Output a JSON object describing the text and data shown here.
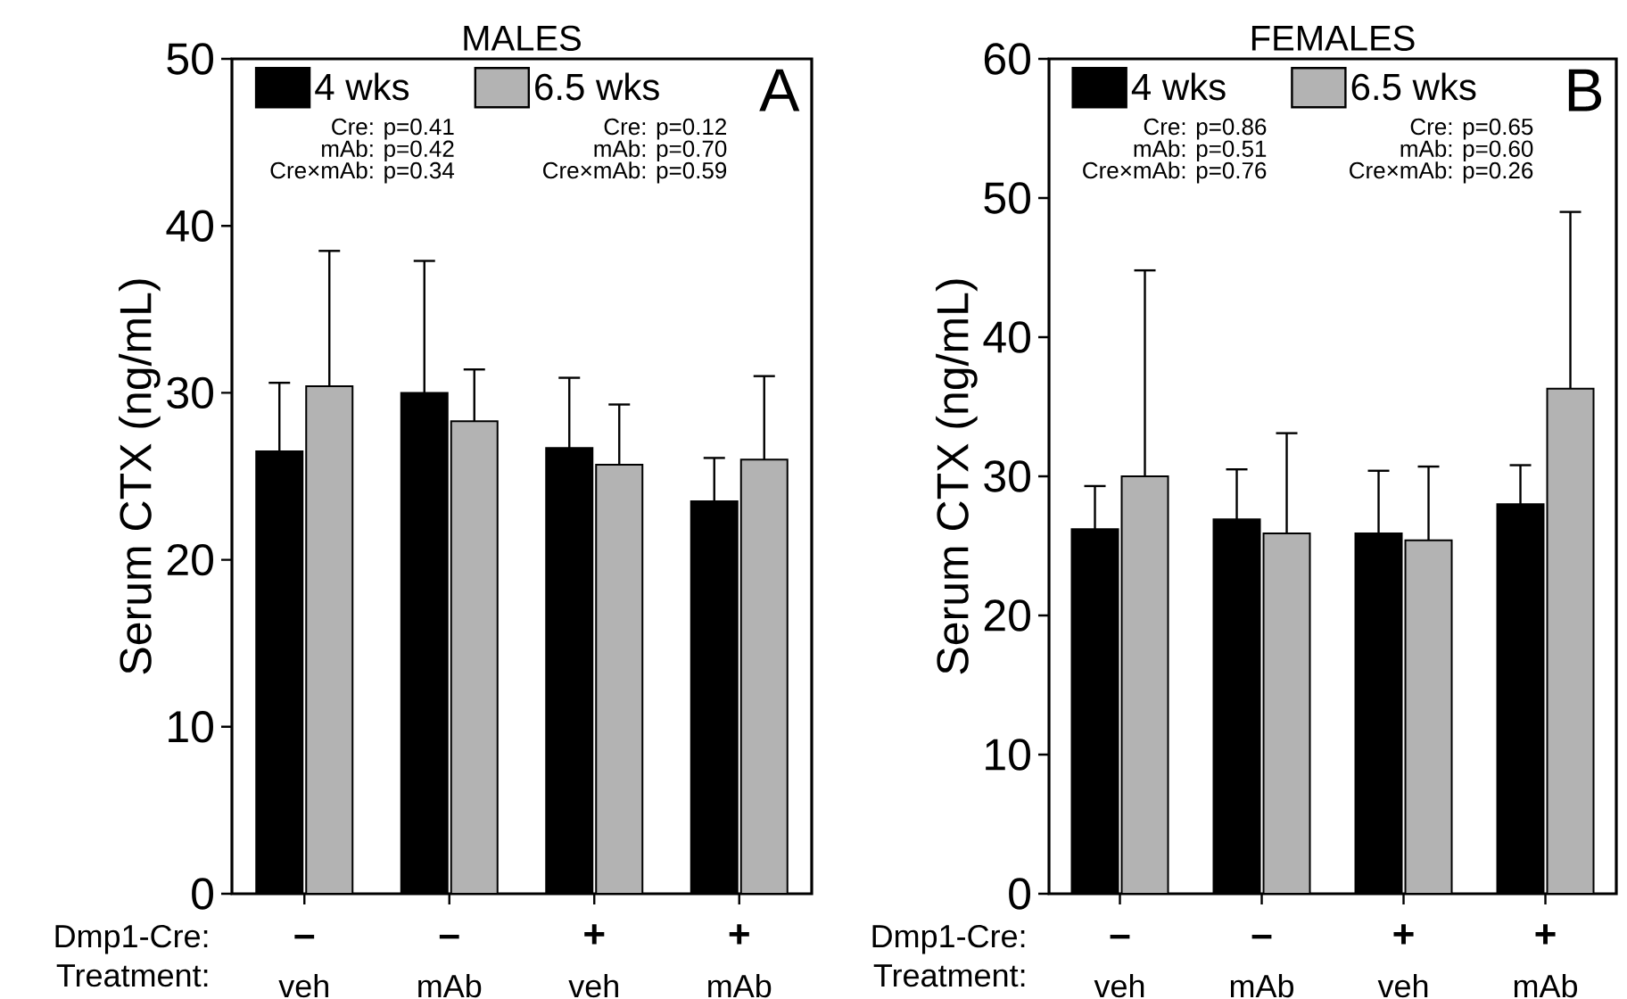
{
  "chart_data": [
    {
      "type": "bar",
      "title": "MALES",
      "ylabel": "Serum CTX (ng/mL)",
      "categories": [
        "veh",
        "mAb",
        "veh",
        "mAb"
      ],
      "ylim": [
        0,
        50
      ],
      "yticks": [
        0,
        10,
        20,
        30,
        40,
        50
      ],
      "legend": "top",
      "grid": false,
      "series": [
        {
          "name": "4 wks",
          "color": "#000000",
          "values": [
            26.5,
            30.0,
            26.7,
            23.5
          ],
          "errors": [
            [
              26.5,
              30.6
            ],
            [
              30.0,
              37.9
            ],
            [
              26.7,
              30.9
            ],
            [
              23.5,
              26.1
            ]
          ]
        },
        {
          "name": "6.5 wks",
          "color": "#b3b3b3",
          "values": [
            30.4,
            28.3,
            25.7,
            26.0
          ],
          "errors": [
            [
              30.4,
              38.5
            ],
            [
              28.3,
              31.4
            ],
            [
              25.7,
              29.3
            ],
            [
              26.0,
              31.0
            ]
          ]
        }
      ],
      "annotations": [
        "A",
        "Cre: p=0.41",
        "mAb: p=0.42",
        "Cre×mAb: p=0.34",
        "Cre: p=0.12",
        "mAb: p=0.70",
        "Cre×mAb: p=0.59",
        "Dmp1-Cre:",
        "Treatment:",
        "–",
        "–",
        "+",
        "+"
      ]
    },
    {
      "type": "bar",
      "title": "FEMALES",
      "ylabel": "Serum CTX (ng/mL)",
      "categories": [
        "veh",
        "mAb",
        "veh",
        "mAb"
      ],
      "ylim": [
        0,
        60
      ],
      "yticks": [
        0,
        10,
        20,
        30,
        40,
        50,
        60
      ],
      "legend": "top",
      "grid": false,
      "series": [
        {
          "name": "4 wks",
          "color": "#000000",
          "values": [
            26.2,
            26.9,
            25.9,
            28.0
          ],
          "errors": [
            [
              26.2,
              29.3
            ],
            [
              26.9,
              30.5
            ],
            [
              25.9,
              30.4
            ],
            [
              28.0,
              30.8
            ]
          ]
        },
        {
          "name": "6.5 wks",
          "color": "#b3b3b3",
          "values": [
            30.0,
            25.9,
            25.4,
            36.3
          ],
          "errors": [
            [
              30.0,
              44.8
            ],
            [
              25.9,
              33.1
            ],
            [
              25.4,
              30.7
            ],
            [
              36.3,
              49.0
            ]
          ]
        }
      ],
      "annotations": [
        "B",
        "Cre: p=0.86",
        "mAb: p=0.51",
        "Cre×mAb: p=0.76",
        "Cre: p=0.65",
        "mAb: p=0.60",
        "Cre×mAb: p=0.26",
        "Dmp1-Cre:",
        "Treatment:",
        "–",
        "–",
        "+",
        "+"
      ]
    }
  ]
}
